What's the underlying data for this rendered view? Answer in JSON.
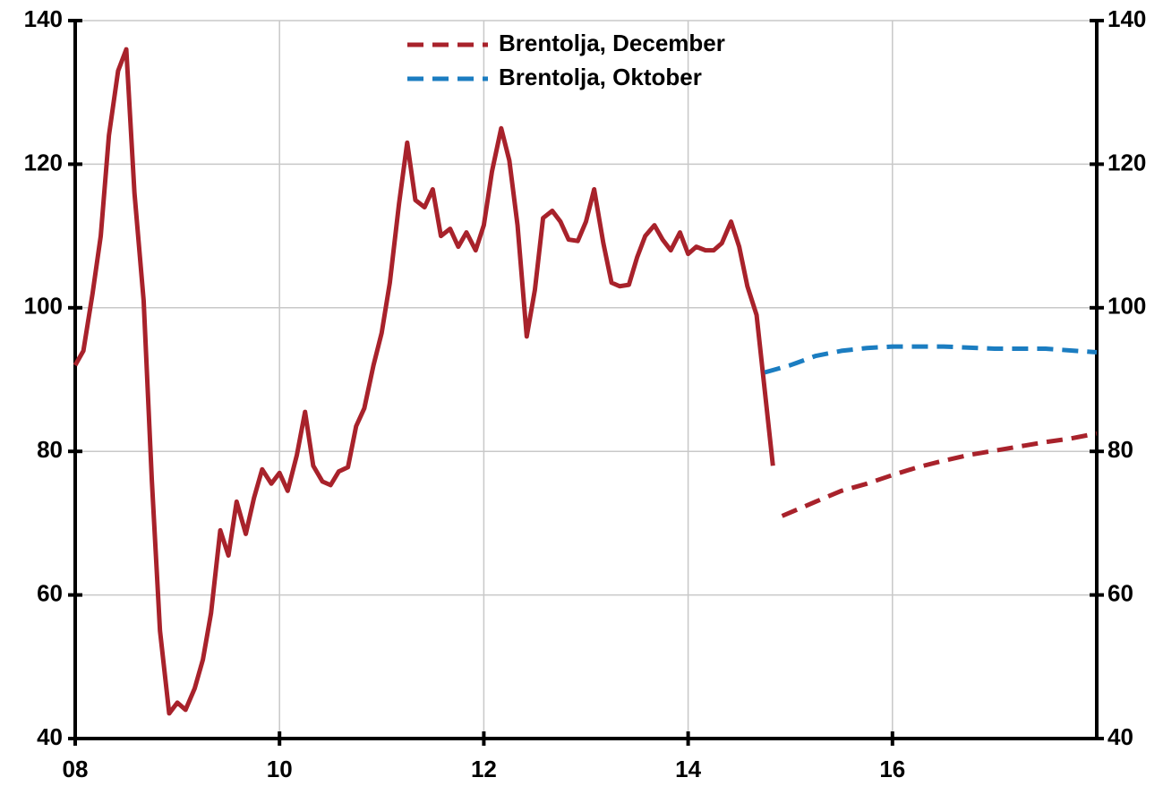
{
  "chart_data": {
    "type": "line",
    "xlim": [
      2008,
      2018
    ],
    "xticks": [
      {
        "value": 2008,
        "label": "08"
      },
      {
        "value": 2010,
        "label": "10"
      },
      {
        "value": 2012,
        "label": "12"
      },
      {
        "value": 2014,
        "label": "14"
      },
      {
        "value": 2016,
        "label": "16"
      }
    ],
    "ylim": [
      40,
      140
    ],
    "yticks": [
      40,
      60,
      80,
      100,
      120,
      140
    ],
    "y2lim": [
      40,
      140
    ],
    "y2ticks": [
      40,
      60,
      80,
      100,
      120,
      140
    ],
    "grid": true,
    "legend": "top",
    "series": [
      {
        "color": "#a8222b",
        "dashed": false,
        "x": [
          2008.0,
          2008.08,
          2008.17,
          2008.25,
          2008.33,
          2008.42,
          2008.5,
          2008.58,
          2008.67,
          2008.75,
          2008.83,
          2008.92,
          2009.0,
          2009.08,
          2009.17,
          2009.25,
          2009.33,
          2009.42,
          2009.5,
          2009.58,
          2009.67,
          2009.75,
          2009.83,
          2009.92,
          2010.0,
          2010.08,
          2010.17,
          2010.25,
          2010.33,
          2010.42,
          2010.5,
          2010.58,
          2010.67,
          2010.75,
          2010.83,
          2010.92,
          2011.0,
          2011.08,
          2011.17,
          2011.25,
          2011.33,
          2011.42,
          2011.5,
          2011.58,
          2011.67,
          2011.75,
          2011.83,
          2011.92,
          2012.0,
          2012.08,
          2012.17,
          2012.25,
          2012.33,
          2012.42,
          2012.5,
          2012.58,
          2012.67,
          2012.75,
          2012.83,
          2012.92,
          2013.0,
          2013.08,
          2013.17,
          2013.25,
          2013.33,
          2013.42,
          2013.5,
          2013.58,
          2013.67,
          2013.75,
          2013.83,
          2013.92,
          2014.0,
          2014.08,
          2014.17,
          2014.25,
          2014.33,
          2014.42,
          2014.5,
          2014.58,
          2014.67,
          2014.75,
          2014.83
        ],
        "values": [
          92,
          94,
          102,
          110,
          124,
          133,
          136,
          116,
          101,
          76,
          55,
          43.5,
          45,
          44,
          47,
          51,
          57.5,
          69,
          65.5,
          73,
          68.5,
          73.5,
          77.5,
          75.5,
          77,
          74.5,
          79.5,
          85.5,
          78,
          75.8,
          75.3,
          77.2,
          77.8,
          83.5,
          86,
          92,
          96.5,
          103.5,
          114.5,
          123,
          115,
          114,
          116.5,
          110,
          111,
          108.5,
          110.5,
          108,
          111.5,
          119,
          125,
          120.5,
          111.5,
          96,
          102.5,
          112.5,
          113.5,
          112,
          109.5,
          109.3,
          112,
          116.5,
          109,
          103.5,
          103,
          103.2,
          107,
          110,
          111.5,
          109.5,
          108,
          110.5,
          107.5,
          108.5,
          108,
          108,
          109,
          112,
          108.5,
          103,
          99,
          88.5,
          78
        ]
      },
      {
        "name": "Brentolja, December",
        "color": "#a8222b",
        "dashed": true,
        "x": [
          2014.92,
          2015.25,
          2015.5,
          2015.75,
          2016.0,
          2016.25,
          2016.5,
          2016.75,
          2017.0,
          2017.25,
          2017.5,
          2017.75,
          2018.0
        ],
        "values": [
          71,
          73,
          74.5,
          75.5,
          76.7,
          77.8,
          78.7,
          79.5,
          80.1,
          80.7,
          81.3,
          81.8,
          82.5
        ]
      },
      {
        "name": "Brentolja, Oktober",
        "color": "#1b7dc1",
        "dashed": true,
        "x": [
          2014.75,
          2015.0,
          2015.25,
          2015.5,
          2015.75,
          2016.0,
          2016.5,
          2017.0,
          2017.5,
          2018.0
        ],
        "values": [
          91,
          92,
          93.3,
          94,
          94.4,
          94.6,
          94.6,
          94.3,
          94.3,
          93.8
        ]
      }
    ]
  }
}
